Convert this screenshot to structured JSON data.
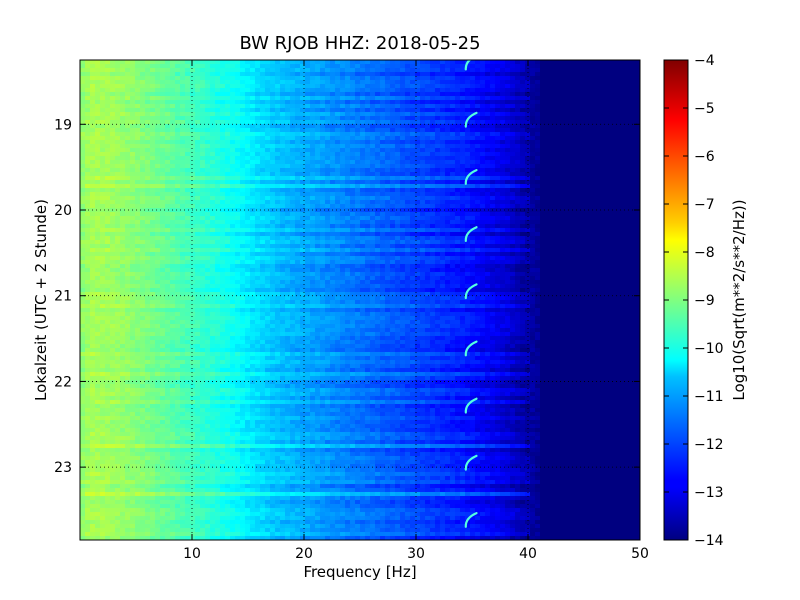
{
  "chart_data": {
    "type": "heatmap",
    "title": "BW RJOB HHZ: 2018-05-25",
    "xlabel": "Frequency [Hz]",
    "ylabel": "Lokalzeit (UTC + 2 Stunde)",
    "xlim": [
      0,
      50
    ],
    "ylim": [
      18.25,
      23.85
    ],
    "y_inverted": true,
    "grid": true,
    "x_ticks": [
      10,
      20,
      30,
      40,
      50
    ],
    "x_tick_labels": [
      "10",
      "20",
      "30",
      "40",
      "50"
    ],
    "y_ticks": [
      19,
      20,
      21,
      22,
      23
    ],
    "y_tick_labels": [
      "19",
      "20",
      "21",
      "22",
      "23"
    ],
    "colorbar": {
      "label": "Log10(Sqrt(m**2/s**2/Hz))",
      "range": [
        -14,
        -4
      ],
      "ticks": [
        -4,
        -5,
        -6,
        -7,
        -8,
        -9,
        -10,
        -11,
        -12,
        -13,
        -14
      ],
      "tick_labels": [
        "−4",
        "−5",
        "−6",
        "−7",
        "−8",
        "−9",
        "−10",
        "−11",
        "−12",
        "−13",
        "−14"
      ],
      "colormap": "jet"
    },
    "profile": {
      "frequency_hz": [
        0,
        1,
        3,
        5,
        8,
        10,
        12,
        14,
        16,
        18,
        20,
        22,
        24,
        26,
        28,
        30,
        32,
        34,
        36,
        38,
        40,
        42,
        50
      ],
      "log10_amplitude": [
        -8.9,
        -8.6,
        -8.7,
        -8.9,
        -9.3,
        -9.6,
        -9.9,
        -10.2,
        -10.6,
        -10.9,
        -11.1,
        -11.3,
        -11.5,
        -11.7,
        -11.9,
        -12.1,
        -12.3,
        -12.5,
        -12.8,
        -13.1,
        -13.6,
        -14,
        -14
      ]
    },
    "narrowband_line_hz": 34.5,
    "narrowband_line_pattern": "recurring hook-shaped traces at 35 Hz, roughly every 40 minutes"
  }
}
